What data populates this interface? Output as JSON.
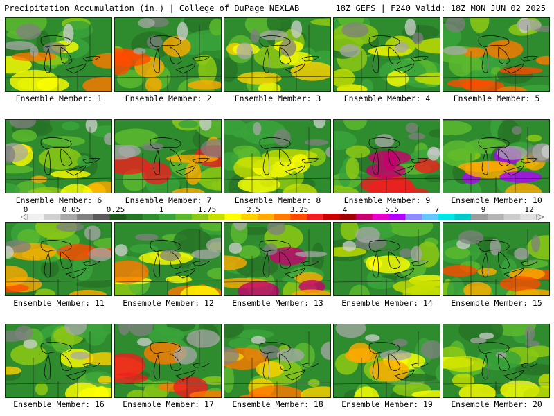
{
  "header": {
    "left": "Precipitation Accumulation (in.) | College of DuPage NEXLAB",
    "right": "18Z GEFS | F240 Valid: 18Z MON JUN 02 2025"
  },
  "members": [
    "Ensemble Member: 1",
    "Ensemble Member: 2",
    "Ensemble Member: 3",
    "Ensemble Member: 4",
    "Ensemble Member: 5",
    "Ensemble Member: 6",
    "Ensemble Member: 7",
    "Ensemble Member: 8",
    "Ensemble Member: 9",
    "Ensemble Member: 10",
    "Ensemble Member: 11",
    "Ensemble Member: 12",
    "Ensemble Member: 13",
    "Ensemble Member: 14",
    "Ensemble Member: 15",
    "Ensemble Member: 16",
    "Ensemble Member: 17",
    "Ensemble Member: 18",
    "Ensemble Member: 19",
    "Ensemble Member: 20"
  ],
  "colorbar": {
    "labels": [
      "0",
      "0.05",
      "0.25",
      "1",
      "1.75",
      "2.5",
      "3.25",
      "4",
      "5.5",
      "7",
      "9",
      "12"
    ],
    "colors": [
      "#f0f0f0",
      "#d0d0d0",
      "#a8a8a8",
      "#808080",
      "#5a5a5a",
      "#1e5a1e",
      "#267326",
      "#2e8b2e",
      "#3aa33a",
      "#5cb82e",
      "#8cc814",
      "#c8e000",
      "#ffff00",
      "#ffd200",
      "#ffaa00",
      "#ff7800",
      "#ff4b00",
      "#f01e1e",
      "#c80000",
      "#a00000",
      "#c8006e",
      "#e600c8",
      "#b400ff",
      "#8c8cff",
      "#64c8ff",
      "#00e6e6",
      "#00c8c8",
      "#9c9c9c",
      "#b4b4b4",
      "#cccccc",
      "#e0e0e0"
    ]
  }
}
